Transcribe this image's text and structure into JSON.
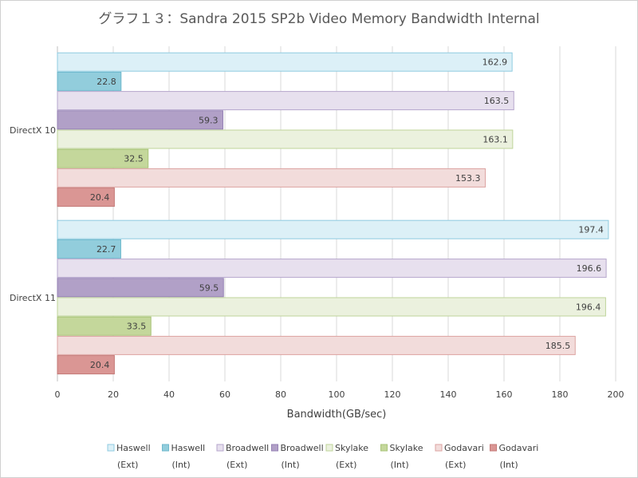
{
  "chart_data": {
    "type": "bar",
    "orientation": "horizontal",
    "title": "グラフ１３：Sandra 2015 SP2b Video Memory Bandwidth Internal",
    "xlabel": "Bandwidth(GB/sec)",
    "ylabel": "",
    "xlim": [
      0,
      200
    ],
    "xticks": [
      0,
      20,
      40,
      60,
      80,
      100,
      120,
      140,
      160,
      180,
      200
    ],
    "grid": true,
    "legend_position": "bottom",
    "categories": [
      "DirectX 10",
      "DirectX 11"
    ],
    "series": [
      {
        "name": "Haswell (Ext)",
        "legend_line1": "Haswell",
        "legend_line2": "(Ext)",
        "color": "#dcf0f7",
        "stroke": "#8fcbe0",
        "values": [
          162.9,
          197.4
        ]
      },
      {
        "name": "Haswell (Int)",
        "legend_line1": "Haswell",
        "legend_line2": "(Int)",
        "color": "#92cddc",
        "stroke": "#6db8cc",
        "values": [
          22.8,
          22.7
        ]
      },
      {
        "name": "Broadwell (Ext)",
        "legend_line1": "Broadwell",
        "legend_line2": "(Ext)",
        "color": "#e7e0ee",
        "stroke": "#b6a6cc",
        "values": [
          163.5,
          196.6
        ]
      },
      {
        "name": "Broadwell (Int)",
        "legend_line1": "Broadwell",
        "legend_line2": "(Int)",
        "color": "#b1a0c7",
        "stroke": "#9682b5",
        "values": [
          59.3,
          59.5
        ]
      },
      {
        "name": "Skylake (Ext)",
        "legend_line1": "Skylake",
        "legend_line2": "(Ext)",
        "color": "#ebf1de",
        "stroke": "#bfd49a",
        "values": [
          163.1,
          196.4
        ]
      },
      {
        "name": "Skylake (Int)",
        "legend_line1": "Skylake",
        "legend_line2": "(Int)",
        "color": "#c4d79b",
        "stroke": "#a9c478",
        "values": [
          32.5,
          33.5
        ]
      },
      {
        "name": "Godavari (Ext)",
        "legend_line1": "Godavari",
        "legend_line2": "(Ext)",
        "color": "#f2dcdb",
        "stroke": "#dca3a1",
        "values": [
          153.3,
          185.5
        ]
      },
      {
        "name": "Godavari (Int)",
        "legend_line1": "Godavari",
        "legend_line2": "(Int)",
        "color": "#da9694",
        "stroke": "#c47977",
        "values": [
          20.4,
          20.4
        ]
      }
    ]
  }
}
